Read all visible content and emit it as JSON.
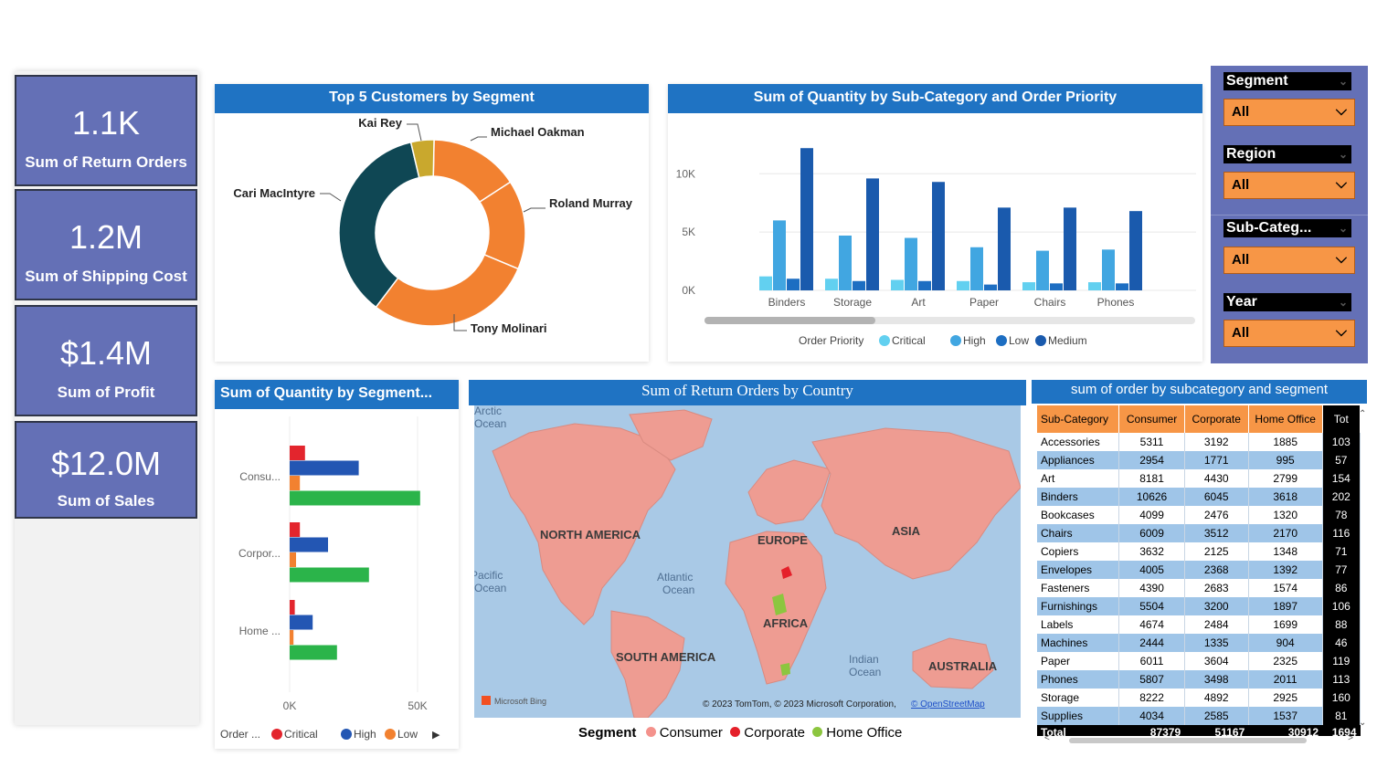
{
  "kpis": [
    {
      "value": "1.1K",
      "label": "Sum of Return Orders"
    },
    {
      "value": "1.2M",
      "label": "Sum of Shipping Cost"
    },
    {
      "value": "$1.4M",
      "label": "Sum of Profit"
    },
    {
      "value": "$12.0M",
      "label": "Sum of Sales"
    }
  ],
  "slicers": [
    {
      "title": "Segment",
      "value": "All"
    },
    {
      "title": "Region",
      "value": "All"
    },
    {
      "title": "Sub-Categ...",
      "value": "All"
    },
    {
      "title": "Year",
      "value": "All"
    }
  ],
  "donut": {
    "title": "Top 5 Customers by Segment"
  },
  "column": {
    "title": "Sum of Quantity by Sub-Category and Order Priority",
    "legend_title": "Order Priority"
  },
  "bar": {
    "title": "Sum of Quantity by Segment...",
    "legend_title": "Order ...",
    "legend_more": "▶"
  },
  "map": {
    "title": "Sum of Return Orders by Country",
    "labels": {
      "north_america": "NORTH AMERICA",
      "south_america": "SOUTH AMERICA",
      "europe": "EUROPE",
      "asia": "ASIA",
      "africa": "AFRICA",
      "australia": "AUSTRALIA",
      "arctic1": "Arctic",
      "arctic2": "Ocean",
      "pacific1": "Pacific",
      "pacific2": "Ocean",
      "atlantic1": "Atlantic",
      "atlantic2": "Ocean",
      "indian1": "Indian",
      "indian2": "Ocean"
    },
    "credit": "© 2023 TomTom, © 2023 Microsoft Corporation,",
    "credit_link": "© OpenStreetMap",
    "bing": "Microsoft Bing",
    "legend_title": "Segment",
    "legend": [
      {
        "name": "Consumer",
        "color": "#f4928c"
      },
      {
        "name": "Corporate",
        "color": "#e5202a"
      },
      {
        "name": "Home Office",
        "color": "#8cc63f"
      }
    ]
  },
  "table": {
    "title": "sum of order by subcategory and segment",
    "headers": [
      "Sub-Category",
      "Consumer",
      "Corporate",
      "Home Office",
      "Tot"
    ],
    "rows": [
      [
        "Accessories",
        "5311",
        "3192",
        "1885",
        "103"
      ],
      [
        "Appliances",
        "2954",
        "1771",
        "995",
        "57"
      ],
      [
        "Art",
        "8181",
        "4430",
        "2799",
        "154"
      ],
      [
        "Binders",
        "10626",
        "6045",
        "3618",
        "202"
      ],
      [
        "Bookcases",
        "4099",
        "2476",
        "1320",
        "78"
      ],
      [
        "Chairs",
        "6009",
        "3512",
        "2170",
        "116"
      ],
      [
        "Copiers",
        "3632",
        "2125",
        "1348",
        "71"
      ],
      [
        "Envelopes",
        "4005",
        "2368",
        "1392",
        "77"
      ],
      [
        "Fasteners",
        "4390",
        "2683",
        "1574",
        "86"
      ],
      [
        "Furnishings",
        "5504",
        "3200",
        "1897",
        "106"
      ],
      [
        "Labels",
        "4674",
        "2484",
        "1699",
        "88"
      ],
      [
        "Machines",
        "2444",
        "1335",
        "904",
        "46"
      ],
      [
        "Paper",
        "6011",
        "3604",
        "2325",
        "119"
      ],
      [
        "Phones",
        "5807",
        "3498",
        "2011",
        "113"
      ],
      [
        "Storage",
        "8222",
        "4892",
        "2925",
        "160"
      ],
      [
        "Supplies",
        "4034",
        "2585",
        "1537",
        "81"
      ]
    ],
    "total": [
      "Total",
      "87379",
      "51167",
      "30912",
      "1694"
    ]
  },
  "chart_data": [
    {
      "type": "pie",
      "title": "Top 5 Customers by Segment",
      "categories": [
        "Michael Oakman",
        "Roland Murray",
        "Tony Molinari",
        "Cari MacIntyre",
        "Kai Rey"
      ],
      "values": [
        15.5,
        15.5,
        29,
        36,
        4
      ],
      "colors": [
        "#f28130",
        "#f28130",
        "#f28130",
        "#0f4754",
        "#c9a82d"
      ]
    },
    {
      "type": "bar",
      "title": "Sum of Quantity by Sub-Category and Order Priority",
      "categories": [
        "Binders",
        "Storage",
        "Art",
        "Paper",
        "Chairs",
        "Phones"
      ],
      "series": [
        {
          "name": "Critical",
          "color": "#62d0f0",
          "values": [
            1200,
            1000,
            900,
            800,
            700,
            700
          ]
        },
        {
          "name": "High",
          "color": "#41a6e1",
          "values": [
            6000,
            4700,
            4500,
            3700,
            3400,
            3500
          ]
        },
        {
          "name": "Low",
          "color": "#1d6ec2",
          "values": [
            1000,
            800,
            800,
            500,
            600,
            600
          ]
        },
        {
          "name": "Medium",
          "color": "#1a5aad",
          "values": [
            12200,
            9600,
            9300,
            7100,
            7100,
            6800
          ]
        }
      ],
      "yticks": [
        "0K",
        "5K",
        "10K"
      ],
      "ylim": [
        0,
        13000
      ]
    },
    {
      "type": "bar",
      "orientation": "horizontal",
      "title": "Sum of Quantity by Segment...",
      "categories": [
        "Consu...",
        "Corpor...",
        "Home ..."
      ],
      "series": [
        {
          "name": "Critical",
          "color": "#e3252d",
          "values": [
            6000,
            4000,
            2000
          ]
        },
        {
          "name": "High",
          "color": "#2356b3",
          "values": [
            27000,
            15000,
            9000
          ]
        },
        {
          "name": "Low",
          "color": "#f28130",
          "values": [
            4000,
            2500,
            1500
          ]
        },
        {
          "name": "Medium",
          "color": "#2bb44a",
          "values": [
            51000,
            31000,
            18500
          ]
        }
      ],
      "xticks": [
        "0K",
        "50K"
      ],
      "xlim": [
        0,
        60000
      ]
    }
  ]
}
